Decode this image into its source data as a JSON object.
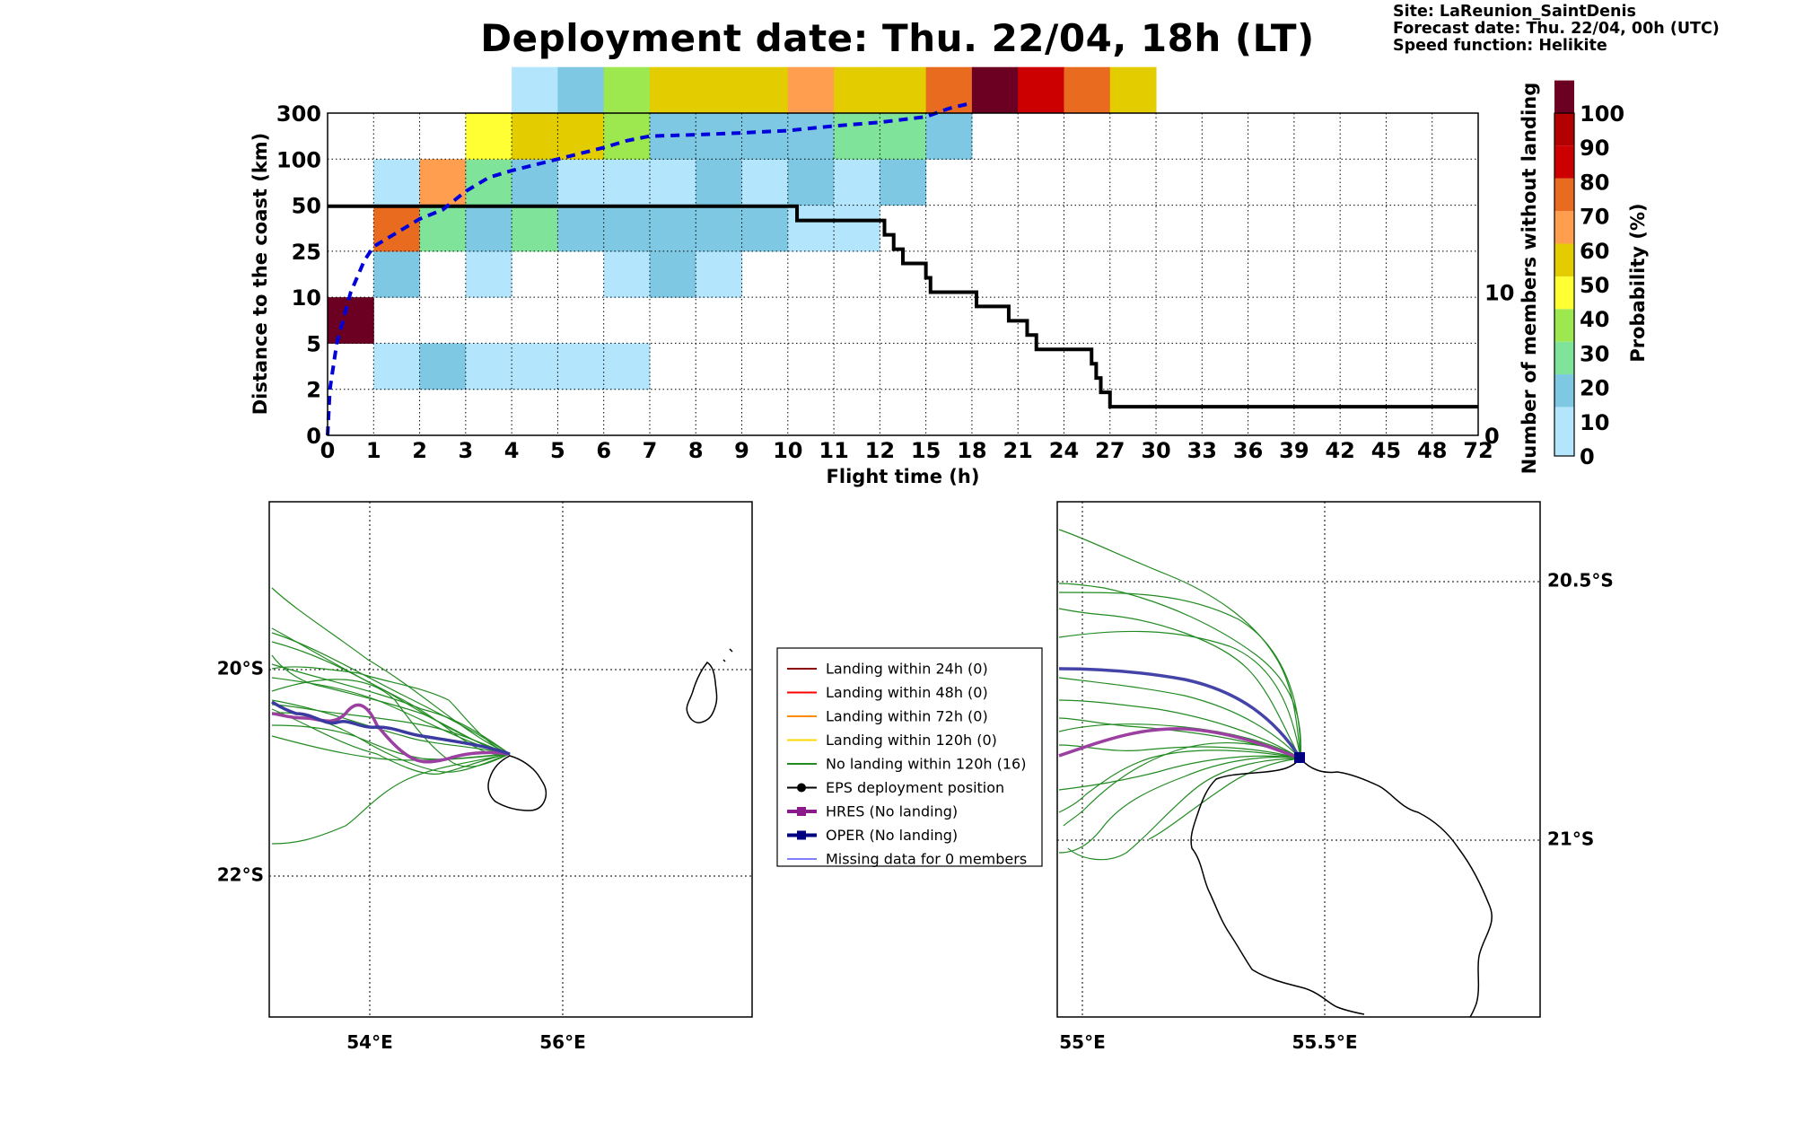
{
  "title": "Deployment date: Thu. 22/04, 18h (LT)",
  "meta": {
    "site": "Site: LaReunion_SaintDenis",
    "forecast": "Forecast date: Thu. 22/04, 00h (UTC)",
    "speed": "Speed function: Helikite"
  },
  "chart_data": [
    {
      "type": "heatmap",
      "xlabel": "Flight time (h)",
      "ylabel": "Distance to the coast (km)",
      "y2label": "Number of members without landing",
      "colorbar_label": "Probability (%)",
      "x_ticks": [
        "0",
        "1",
        "2",
        "3",
        "4",
        "5",
        "6",
        "7",
        "8",
        "9",
        "10",
        "11",
        "12",
        "15",
        "18",
        "21",
        "24",
        "27",
        "30",
        "33",
        "36",
        "39",
        "42",
        "45",
        "48",
        "72"
      ],
      "y_ticks": [
        "0",
        "2",
        "5",
        "10",
        "25",
        "50",
        "100",
        "300"
      ],
      "y2_ticks": [
        "0",
        "10"
      ],
      "colorbar_ticks": [
        "0",
        "10",
        "20",
        "30",
        "40",
        "50",
        "60",
        "70",
        "80",
        "90",
        "100"
      ],
      "colorbar_colors": [
        "#b3e5fc",
        "#7ec8e3",
        "#7fe39a",
        "#9de84f",
        "#ffff33",
        "#e3cc00",
        "#ff9e4f",
        "#e86b1f",
        "#cc0000",
        "#b30000",
        "#6b0022"
      ],
      "cells": [
        {
          "x": 0,
          "y": 2,
          "p": 100
        },
        {
          "x": 1,
          "y": 1,
          "p": 5
        },
        {
          "x": 2,
          "y": 1,
          "p": 15
        },
        {
          "x": 3,
          "y": 1,
          "p": 5
        },
        {
          "x": 4,
          "y": 1,
          "p": 5
        },
        {
          "x": 5,
          "y": 1,
          "p": 5
        },
        {
          "x": 6,
          "y": 1,
          "p": 5
        },
        {
          "x": 1,
          "y": 3,
          "p": 15
        },
        {
          "x": 3,
          "y": 3,
          "p": 5
        },
        {
          "x": 6,
          "y": 3,
          "p": 5
        },
        {
          "x": 7,
          "y": 3,
          "p": 15
        },
        {
          "x": 8,
          "y": 3,
          "p": 5
        },
        {
          "x": 1,
          "y": 4,
          "p": 75
        },
        {
          "x": 2,
          "y": 4,
          "p": 25
        },
        {
          "x": 3,
          "y": 4,
          "p": 15
        },
        {
          "x": 4,
          "y": 4,
          "p": 25
        },
        {
          "x": 5,
          "y": 4,
          "p": 15
        },
        {
          "x": 6,
          "y": 4,
          "p": 15
        },
        {
          "x": 7,
          "y": 4,
          "p": 15
        },
        {
          "x": 8,
          "y": 4,
          "p": 15
        },
        {
          "x": 9,
          "y": 4,
          "p": 15
        },
        {
          "x": 10,
          "y": 4,
          "p": 5
        },
        {
          "x": 11,
          "y": 4,
          "p": 5
        },
        {
          "x": 1,
          "y": 5,
          "p": 5
        },
        {
          "x": 2,
          "y": 5,
          "p": 65
        },
        {
          "x": 3,
          "y": 5,
          "p": 25
        },
        {
          "x": 4,
          "y": 5,
          "p": 15
        },
        {
          "x": 5,
          "y": 5,
          "p": 5
        },
        {
          "x": 6,
          "y": 5,
          "p": 5
        },
        {
          "x": 7,
          "y": 5,
          "p": 5
        },
        {
          "x": 8,
          "y": 5,
          "p": 15
        },
        {
          "x": 9,
          "y": 5,
          "p": 5
        },
        {
          "x": 10,
          "y": 5,
          "p": 15
        },
        {
          "x": 11,
          "y": 5,
          "p": 5
        },
        {
          "x": 12,
          "y": 5,
          "p": 15
        },
        {
          "x": 3,
          "y": 6,
          "p": 45
        },
        {
          "x": 4,
          "y": 6,
          "p": 55
        },
        {
          "x": 5,
          "y": 6,
          "p": 55
        },
        {
          "x": 6,
          "y": 6,
          "p": 35
        },
        {
          "x": 7,
          "y": 6,
          "p": 15
        },
        {
          "x": 8,
          "y": 6,
          "p": 15
        },
        {
          "x": 9,
          "y": 6,
          "p": 15
        },
        {
          "x": 10,
          "y": 6,
          "p": 15
        },
        {
          "x": 11,
          "y": 6,
          "p": 25
        },
        {
          "x": 12,
          "y": 6,
          "p": 25
        },
        {
          "x": 13,
          "y": 6,
          "p": 15
        },
        {
          "x": 4,
          "y": 7,
          "p": 5
        },
        {
          "x": 5,
          "y": 7,
          "p": 15
        },
        {
          "x": 6,
          "y": 7,
          "p": 35
        },
        {
          "x": 7,
          "y": 7,
          "p": 55
        },
        {
          "x": 8,
          "y": 7,
          "p": 55
        },
        {
          "x": 9,
          "y": 7,
          "p": 55
        },
        {
          "x": 10,
          "y": 7,
          "p": 65
        },
        {
          "x": 11,
          "y": 7,
          "p": 55
        },
        {
          "x": 12,
          "y": 7,
          "p": 55
        },
        {
          "x": 13,
          "y": 7,
          "p": 75
        },
        {
          "x": 14,
          "y": 7,
          "p": 100
        },
        {
          "x": 15,
          "y": 7,
          "p": 85
        },
        {
          "x": 16,
          "y": 7,
          "p": 75
        },
        {
          "x": 17,
          "y": 7,
          "p": 55
        }
      ],
      "series": [
        {
          "name": "Number of members without landing",
          "axis": "right",
          "steps": [
            [
              0,
              16
            ],
            [
              10.2,
              16
            ],
            [
              10.2,
              15
            ],
            [
              12.1,
              15
            ],
            [
              12.1,
              14
            ],
            [
              12.3,
              14
            ],
            [
              12.3,
              13
            ],
            [
              12.5,
              13
            ],
            [
              12.5,
              12
            ],
            [
              13.0,
              12
            ],
            [
              13.0,
              11
            ],
            [
              13.1,
              11
            ],
            [
              13.1,
              10
            ],
            [
              14.1,
              10
            ],
            [
              14.1,
              9
            ],
            [
              14.8,
              9
            ],
            [
              14.8,
              8
            ],
            [
              15.2,
              8
            ],
            [
              15.2,
              7
            ],
            [
              15.4,
              7
            ],
            [
              15.4,
              6
            ],
            [
              16.6,
              6
            ],
            [
              16.6,
              5
            ],
            [
              16.7,
              5
            ],
            [
              16.7,
              4
            ],
            [
              16.8,
              4
            ],
            [
              16.8,
              3
            ],
            [
              17.0,
              3
            ],
            [
              17.0,
              2
            ],
            [
              25,
              2
            ]
          ]
        },
        {
          "name": "cumulative distance",
          "axis": "left",
          "style": "dashed",
          "points": [
            [
              0,
              0
            ],
            [
              0.05,
              1.0
            ],
            [
              0.2,
              2.0
            ],
            [
              0.5,
              3.1
            ],
            [
              0.8,
              3.8
            ],
            [
              1.0,
              4.1
            ],
            [
              1.5,
              4.4
            ],
            [
              2.0,
              4.7
            ],
            [
              2.5,
              4.9
            ],
            [
              3.0,
              5.3
            ],
            [
              3.5,
              5.6
            ],
            [
              4.0,
              5.75
            ],
            [
              5.0,
              6.0
            ],
            [
              6.0,
              6.25
            ],
            [
              6.5,
              6.4
            ],
            [
              7.0,
              6.5
            ],
            [
              8.0,
              6.53
            ],
            [
              9.0,
              6.57
            ],
            [
              10.0,
              6.62
            ],
            [
              11.0,
              6.72
            ],
            [
              12.0,
              6.8
            ],
            [
              13.0,
              6.92
            ],
            [
              13.5,
              7.1
            ],
            [
              14.0,
              7.22
            ]
          ]
        }
      ]
    }
  ],
  "legend": [
    {
      "label": "Landing within 24h (0)",
      "color": "#8b0000",
      "marker": "none",
      "width": 2
    },
    {
      "label": "Landing within 48h (0)",
      "color": "#ff0000",
      "marker": "none",
      "width": 2
    },
    {
      "label": "Landing within 72h (0)",
      "color": "#ff8c00",
      "marker": "none",
      "width": 2
    },
    {
      "label": "Landing within 120h (0)",
      "color": "#ffd700",
      "marker": "none",
      "width": 2
    },
    {
      "label": "No landing within 120h (16)",
      "color": "#228b22",
      "marker": "none",
      "width": 2
    },
    {
      "label": "EPS deployment position",
      "color": "#000000",
      "marker": "circle",
      "width": 2
    },
    {
      "label": "HRES (No landing)",
      "color": "#8b1a8b",
      "marker": "square",
      "width": 4
    },
    {
      "label": "OPER (No landing)",
      "color": "#000080",
      "marker": "square",
      "width": 4
    },
    {
      "label": "Missing data for 0 members",
      "color": "#5555ff",
      "marker": "none",
      "width": 1.5
    }
  ],
  "map_left": {
    "lon_labels": [
      "54°E",
      "56°E"
    ],
    "lat_labels": [
      "20°S",
      "22°S"
    ]
  },
  "map_right": {
    "lon_labels": [
      "55°E",
      "55.5°E"
    ],
    "lat_labels": [
      "20.5°S",
      "21°S"
    ]
  }
}
